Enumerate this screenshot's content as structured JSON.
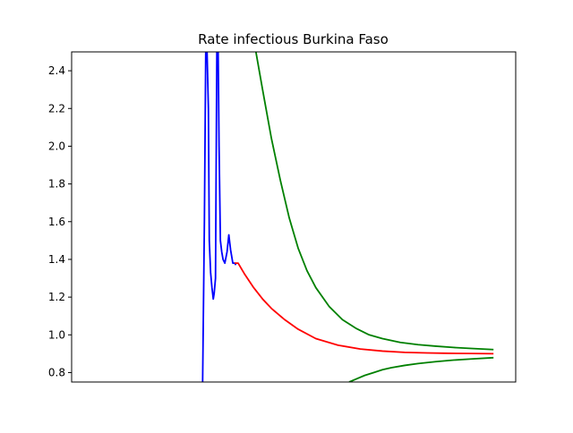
{
  "chart_data": {
    "type": "line",
    "title": "Rate infectious Burkina Faso",
    "xlabel": "",
    "ylabel": "",
    "xlim": [
      0,
      100
    ],
    "ylim": [
      0.75,
      2.5
    ],
    "grid": false,
    "x_ticks_visible": false,
    "y_ticks": [
      0.8,
      1.0,
      1.2,
      1.4,
      1.6,
      1.8,
      2.0,
      2.2,
      2.4
    ],
    "y_tick_labels": [
      "0.8",
      "1.0",
      "1.2",
      "1.4",
      "1.6",
      "1.8",
      "2.0",
      "2.2",
      "2.4"
    ],
    "series": [
      {
        "color": "#0000ff",
        "x": [
          29.5,
          29.9,
          30.2,
          30.5,
          30.8,
          31.0,
          31.3,
          31.6,
          31.9,
          32.1,
          32.4,
          32.7,
          33.0,
          33.2,
          33.5,
          33.8,
          34.1,
          34.5,
          35.0,
          35.4,
          35.8,
          36.3,
          36.7,
          37.0
        ],
        "values": [
          0.75,
          1.6,
          2.5,
          2.5,
          2.2,
          1.5,
          1.33,
          1.25,
          1.19,
          1.22,
          1.3,
          2.5,
          2.5,
          2.0,
          1.5,
          1.44,
          1.4,
          1.38,
          1.44,
          1.53,
          1.45,
          1.38,
          1.38,
          1.37
        ]
      },
      {
        "color": "#ff0000",
        "x": [
          36.7,
          37.5,
          39,
          41,
          43,
          45,
          48,
          51,
          55,
          60,
          65,
          70,
          75,
          80,
          85,
          90,
          95
        ],
        "values": [
          1.38,
          1.38,
          1.32,
          1.25,
          1.19,
          1.14,
          1.08,
          1.03,
          0.98,
          0.945,
          0.925,
          0.914,
          0.907,
          0.904,
          0.902,
          0.901,
          0.9
        ]
      },
      {
        "color": "#008000",
        "x": [
          41.5,
          43,
          45,
          47,
          49,
          51,
          53,
          55,
          58,
          61,
          64,
          67,
          70,
          74,
          78,
          82,
          86,
          90,
          95
        ],
        "values": [
          2.5,
          2.3,
          2.04,
          1.82,
          1.62,
          1.46,
          1.34,
          1.25,
          1.15,
          1.08,
          1.035,
          1.0,
          0.98,
          0.96,
          0.948,
          0.94,
          0.933,
          0.928,
          0.922
        ]
      },
      {
        "color": "#008000",
        "x": [
          62.5,
          64,
          66,
          68,
          70,
          72,
          75,
          78,
          82,
          86,
          90,
          95
        ],
        "values": [
          0.75,
          0.765,
          0.785,
          0.8,
          0.815,
          0.826,
          0.838,
          0.848,
          0.858,
          0.866,
          0.872,
          0.879
        ]
      }
    ]
  }
}
